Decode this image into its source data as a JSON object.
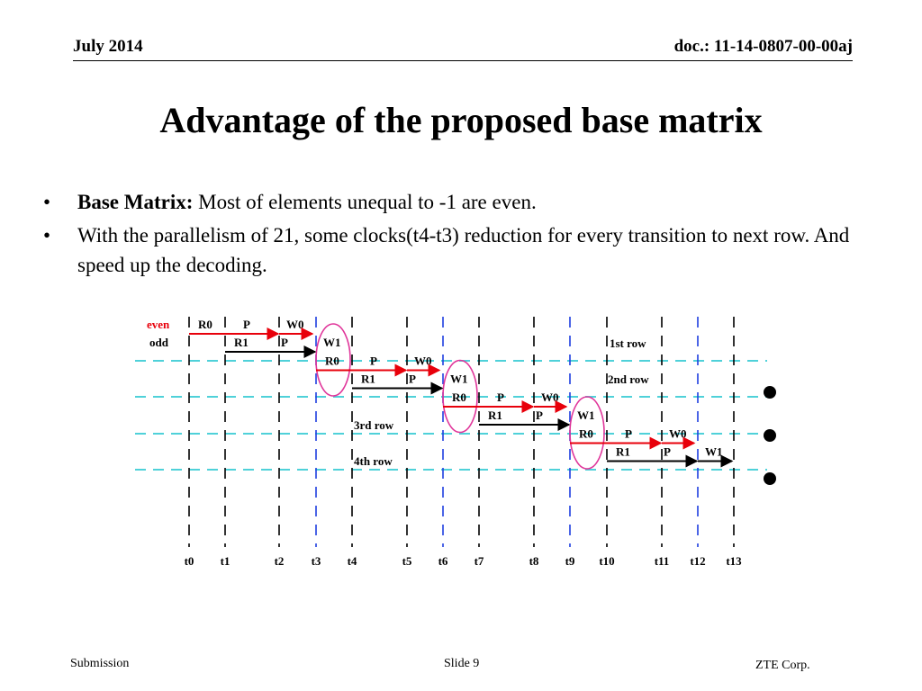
{
  "header": {
    "date": "July 2014",
    "doc_id": "doc.: 11-14-0807-00-00aj"
  },
  "title": "Advantage of the proposed base matrix",
  "bullets": [
    {
      "bold": "Base Matrix:",
      "text": " Most of elements unequal to -1 are even."
    },
    {
      "bold": "",
      "text": "With the parallelism of 21, some clocks(t4-t3) reduction for every transition to next row. And speed up the decoding."
    }
  ],
  "diagram": {
    "colors": {
      "even": "#e8000b",
      "odd": "#000000",
      "dashed_row": "#4fd1d9",
      "blue_clock": "#1f3fe0",
      "ellipse": "#e0359a"
    },
    "legend": {
      "even": "even",
      "odd": "odd"
    },
    "clock_labels": [
      "t0",
      "t1",
      "t2",
      "t3",
      "t4",
      "t5",
      "t6",
      "t7",
      "t8",
      "t9",
      "t10",
      "t11",
      "t12",
      "t13"
    ],
    "row_labels": [
      "1st row",
      "2nd row",
      "3rd row",
      "4th row"
    ],
    "row_ops": [
      {
        "even": [
          "R0",
          "P",
          "W0"
        ],
        "odd": [
          "R1",
          "P",
          "W1"
        ]
      },
      {
        "even": [
          "R0",
          "P",
          "W0"
        ],
        "odd": [
          "R1",
          "P",
          "W1"
        ]
      },
      {
        "even": [
          "R0",
          "P",
          "W0"
        ],
        "odd": [
          "R1",
          "P",
          "W1"
        ]
      },
      {
        "even": [
          "R0",
          "P",
          "W0"
        ],
        "odd": [
          "R1",
          "P",
          "W1"
        ]
      }
    ],
    "continuation": "•••"
  },
  "footer": {
    "left": "Submission",
    "middle": "Slide 9",
    "right": "ZTE Corp."
  }
}
